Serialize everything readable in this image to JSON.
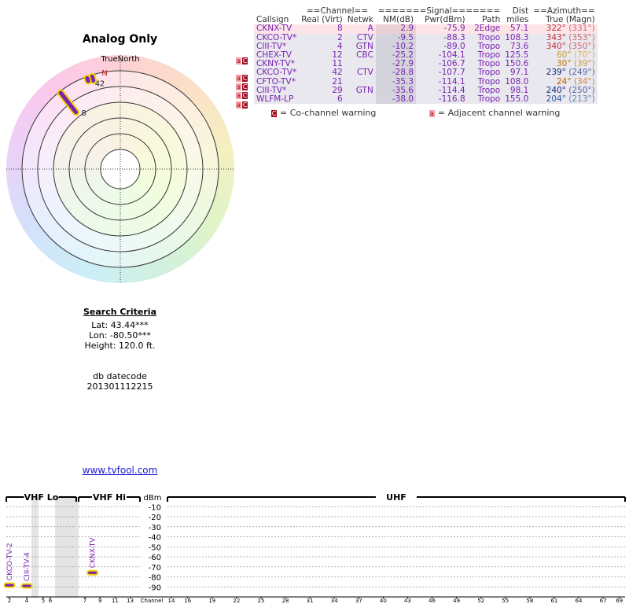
{
  "title": "Analog Only",
  "polar": {
    "north_label": "TrueNorth",
    "n": "N",
    "markers": [
      {
        "label": "8",
        "azimuth": 322,
        "nm": 2.9
      },
      {
        "label": "2",
        "azimuth": 343,
        "nm": -9.5
      },
      {
        "label": "4",
        "azimuth": 340,
        "nm": -10.2
      }
    ]
  },
  "criteria": {
    "title": "Search Criteria",
    "lat": "Lat: 43.44***",
    "lon": "Lon: -80.50***",
    "height": "Height: 120.0 ft.",
    "datecode_label": "db datecode",
    "datecode": "201301112215"
  },
  "link": "www.tvfool.com",
  "table": {
    "group": {
      "channel": "==Channel==",
      "signal": "=======Signal=======",
      "dist": "Dist",
      "azimuth": "==Azimuth=="
    },
    "columns": [
      "Callsign",
      "Real (Virt)",
      "Netwk",
      "NM(dB)",
      "Pwr(dBm)",
      "Path",
      "miles",
      "True (Magn)"
    ],
    "rows": [
      {
        "cells": [
          "CKNX-TV",
          "8",
          "A",
          "2.9",
          "-75.9",
          "2Edge",
          "57.1",
          "322°",
          "(331°)"
        ],
        "warn": false,
        "az_color": "#c0303a"
      },
      {
        "cells": [
          "CKCO-TV*",
          "2",
          "CTV",
          "-9.5",
          "-88.3",
          "Tropo",
          "108.3",
          "343°",
          "(353°)"
        ],
        "warn": false,
        "az_color": "#c0303a"
      },
      {
        "cells": [
          "CIII-TV*",
          "4",
          "GTN",
          "-10.2",
          "-89.0",
          "Tropo",
          "73.6",
          "340°",
          "(350°)"
        ],
        "warn": false,
        "az_color": "#c0303a"
      },
      {
        "cells": [
          "CHEX-TV",
          "12",
          "CBC",
          "-25.2",
          "-104.1",
          "Tropo",
          "125.5",
          "60°",
          "(70°)"
        ],
        "warn": true,
        "az_color": "#d0a020"
      },
      {
        "cells": [
          "CKNY-TV*",
          "11",
          "",
          "-27.9",
          "-106.7",
          "Tropo",
          "150.6",
          "30°",
          "(39°)"
        ],
        "warn": false,
        "az_color": "#c07a00"
      },
      {
        "cells": [
          "CKCO-TV*",
          "42",
          "CTV",
          "-28.8",
          "-107.7",
          "Tropo",
          "97.1",
          "239°",
          "(249°)"
        ],
        "warn": true,
        "az_color": "#1a2a80"
      },
      {
        "cells": [
          "CFTO-TV*",
          "21",
          "",
          "-35.3",
          "-114.1",
          "Tropo",
          "108.0",
          "24°",
          "(34°)"
        ],
        "warn": true,
        "az_color": "#c05a00"
      },
      {
        "cells": [
          "CIII-TV*",
          "29",
          "GTN",
          "-35.6",
          "-114.4",
          "Tropo",
          "98.1",
          "240°",
          "(250°)"
        ],
        "warn": true,
        "az_color": "#1a2a80"
      },
      {
        "cells": [
          "WLFM-LP",
          "6",
          "",
          "-38.0",
          "-116.8",
          "Tropo",
          "155.0",
          "204°",
          "(213°)"
        ],
        "warn": true,
        "az_color": "#2a5aa0"
      }
    ]
  },
  "legend": {
    "co_icon": "C",
    "co": "= Co-channel warning",
    "adj_icon": "a",
    "adj": "= Adjacent channel warning"
  },
  "chart_data": {
    "type": "spectrum",
    "sections": [
      "VHF Lo",
      "VHF Hi",
      "UHF"
    ],
    "y_label": "dBm",
    "x_label": "Channel",
    "ylim": [
      -100,
      0
    ],
    "yticks": [
      -10,
      -20,
      -30,
      -40,
      -50,
      -60,
      -70,
      -80,
      -90
    ],
    "xticks": [
      2,
      4,
      5,
      6,
      7,
      9,
      11,
      13,
      14,
      16,
      19,
      22,
      25,
      28,
      31,
      34,
      37,
      40,
      43,
      46,
      49,
      52,
      55,
      58,
      61,
      64,
      67,
      69
    ],
    "grid": true,
    "color": "#7a22b0",
    "signals": [
      {
        "name": "CKCO-TV-2",
        "channel": 2,
        "value": -88.3
      },
      {
        "name": "CIII-TV-4",
        "channel": 4,
        "value": -89.0
      },
      {
        "name": "CKNX-TV",
        "channel": 8,
        "value": -75.9
      }
    ]
  }
}
